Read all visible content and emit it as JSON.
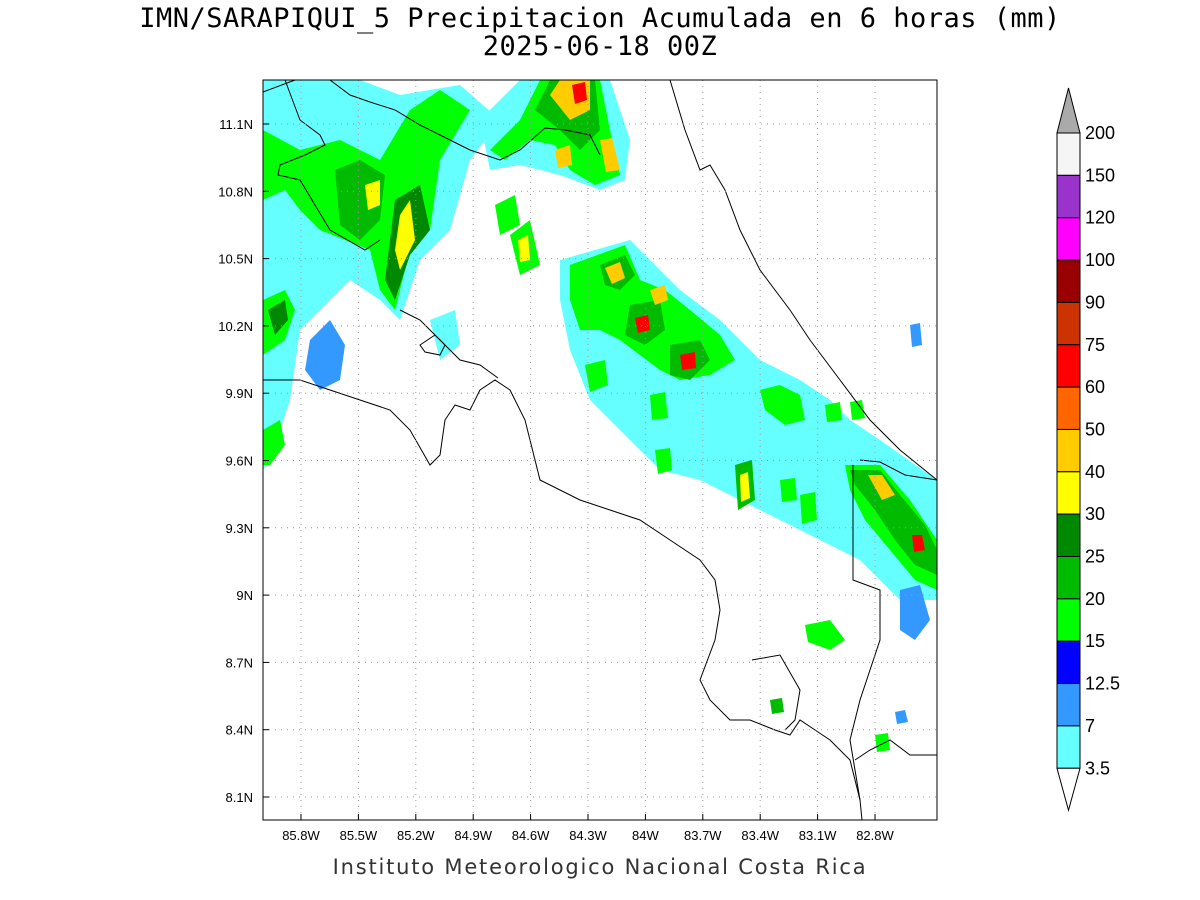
{
  "title_line1": "IMN/SARAPIQUI_5 Precipitacion Acumulada en 6 horas (mm)",
  "title_line2": "2025-06-18 00Z",
  "credit": "Instituto Meteorologico Nacional Costa Rica",
  "lon_ticks": [
    "85.8W",
    "85.5W",
    "85.2W",
    "84.9W",
    "84.6W",
    "84.3W",
    "84W",
    "83.7W",
    "83.4W",
    "83.1W",
    "82.8W"
  ],
  "lat_ticks": [
    "11.1N",
    "10.8N",
    "10.5N",
    "10.2N",
    "9.9N",
    "9.6N",
    "9.3N",
    "9N",
    "8.7N",
    "8.4N",
    "8.1N"
  ],
  "colorbar": {
    "labels": [
      "200",
      "150",
      "120",
      "100",
      "90",
      "75",
      "60",
      "50",
      "40",
      "30",
      "25",
      "20",
      "15",
      "12.5",
      "7",
      "3.5"
    ],
    "colors": [
      "#f5f5f5",
      "#9933cc",
      "#ff00ff",
      "#990000",
      "#cc3300",
      "#ff0000",
      "#ff6600",
      "#ffcc00",
      "#ffff00",
      "#008800",
      "#00bb00",
      "#00ff00",
      "#0000ff",
      "#3399ff",
      "#66ffff"
    ],
    "over_color": "#aaaaaa"
  }
}
